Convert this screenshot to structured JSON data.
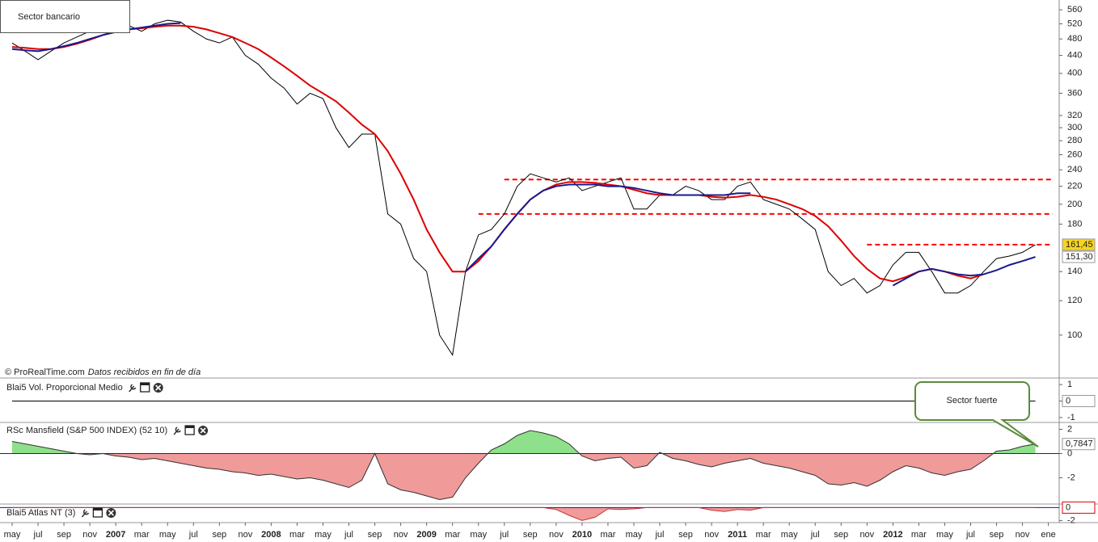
{
  "chart_data": [
    {
      "type": "line",
      "title": "Sector bancario",
      "source_note": "© ProRealTime.com",
      "source_note2": "Datos recibidos en fin de día",
      "categories": [
        "may",
        null,
        "jul",
        null,
        "sep",
        null,
        "nov",
        null,
        "2007",
        null,
        "mar",
        null,
        "may",
        null,
        "jul",
        null,
        "sep",
        null,
        "nov",
        null,
        "2008",
        null,
        "mar",
        null,
        "may",
        null,
        "jul",
        null,
        "sep",
        null,
        "nov",
        null,
        "2009",
        null,
        "mar",
        null,
        "may",
        null,
        "jul",
        null,
        "sep",
        null,
        "nov",
        null,
        "2010",
        null,
        "mar",
        null,
        "may",
        null,
        "jul",
        null,
        "sep",
        null,
        "nov",
        null,
        "2011",
        null,
        "mar",
        null,
        "may",
        null,
        "jul",
        null,
        "sep",
        null,
        "nov",
        null,
        "2012",
        null,
        "mar",
        null,
        "may",
        null,
        "jul",
        null,
        "sep",
        null,
        "nov",
        null,
        "ene"
      ],
      "log_scale": true,
      "ylim": [
        80,
        580
      ],
      "yticks": [
        560,
        520,
        480,
        440,
        400,
        360,
        320,
        300,
        280,
        260,
        240,
        220,
        200,
        180,
        140,
        120,
        100
      ],
      "series": [
        {
          "color": "#000000",
          "values": [
            470,
            450,
            430,
            450,
            470,
            485,
            500,
            510,
            520,
            515,
            500,
            520,
            530,
            525,
            500,
            480,
            470,
            485,
            440,
            420,
            390,
            370,
            340,
            360,
            350,
            300,
            270,
            290,
            290,
            190,
            180,
            150,
            140,
            100,
            90,
            140,
            170,
            175,
            190,
            220,
            235,
            230,
            225,
            230,
            215,
            220,
            225,
            230,
            195,
            195,
            210,
            210,
            220,
            215,
            205,
            205,
            220,
            225,
            205,
            200,
            195,
            185,
            175,
            140,
            130,
            135,
            125,
            130,
            145,
            155,
            155,
            140,
            125,
            125,
            130,
            140,
            150,
            152,
            155,
            161.45,
            null
          ],
          "last_label": "161,45",
          "label_fill": "#f7d51c"
        },
        {
          "color": "#dd0000",
          "values": [
            460,
            458,
            455,
            455,
            460,
            468,
            478,
            490,
            500,
            505,
            508,
            512,
            515,
            515,
            512,
            505,
            495,
            485,
            470,
            455,
            435,
            415,
            395,
            375,
            360,
            345,
            325,
            305,
            290,
            265,
            235,
            205,
            175,
            155,
            140,
            140,
            148,
            160,
            175,
            190,
            205,
            215,
            222,
            225,
            225,
            224,
            222,
            220,
            216,
            212,
            210,
            210,
            210,
            210,
            208,
            207,
            208,
            210,
            208,
            205,
            200,
            195,
            188,
            178,
            165,
            152,
            142,
            135,
            133,
            136,
            140,
            142,
            140,
            137,
            135,
            138,
            null,
            null,
            null,
            null,
            null
          ]
        },
        {
          "color": "#1a1a8c",
          "values": [
            455,
            452,
            450,
            455,
            462,
            470,
            480,
            490,
            498,
            505,
            510,
            515,
            520,
            522,
            null,
            null,
            null,
            null,
            null,
            null,
            null,
            null,
            null,
            null,
            null,
            null,
            null,
            null,
            null,
            null,
            null,
            null,
            null,
            null,
            null,
            140,
            150,
            160,
            175,
            190,
            205,
            215,
            220,
            222,
            222,
            222,
            220,
            220,
            218,
            215,
            212,
            210,
            210,
            210,
            210,
            210,
            212,
            212,
            null,
            null,
            null,
            null,
            null,
            null,
            null,
            null,
            null,
            null,
            130,
            135,
            140,
            142,
            140,
            138,
            137,
            138,
            141,
            145,
            148,
            151.3,
            null
          ],
          "last_label": "151,30",
          "label_fill": "#ffffff"
        }
      ],
      "hline_color": "#ff0000",
      "hlines": [
        {
          "value": 228,
          "from": 38
        },
        {
          "value": 190,
          "from": 36
        },
        {
          "value": 161.45,
          "from": 66
        }
      ]
    },
    {
      "type": "line",
      "title": "Blai5 Vol. Proporcional Medio",
      "ylim": [
        -1.25,
        1.25
      ],
      "yticks": [
        1,
        0,
        -1
      ],
      "series": [
        {
          "color": "#000000",
          "values": [
            0,
            0,
            0,
            0,
            0,
            0,
            0,
            0,
            0,
            0,
            0,
            0,
            0,
            0,
            0,
            0,
            0,
            0,
            0,
            0,
            0,
            0,
            0,
            0,
            0,
            0,
            0,
            0,
            0,
            0,
            0,
            0,
            0,
            0,
            0,
            0,
            0,
            0,
            0,
            0,
            0,
            0,
            0,
            0,
            0,
            0,
            0,
            0,
            0,
            0,
            0,
            0,
            0,
            0,
            0,
            0,
            0,
            0,
            0,
            0,
            0,
            0,
            0,
            0,
            0,
            0,
            0,
            0,
            0,
            0,
            0,
            0,
            0,
            0,
            0,
            0,
            0,
            0,
            0,
            0,
            null
          ],
          "last_label": "0",
          "label_fill": "#ffffff"
        }
      ]
    },
    {
      "type": "area",
      "title": "RSc Mansfield (S&P 500 INDEX) (52 10)",
      "ylim": [
        -4.1,
        2.5
      ],
      "yticks": [
        2,
        0,
        -2
      ],
      "annotation": "Sector fuerte",
      "series": [
        {
          "color": "#333333",
          "pos_color": "#8fe08a",
          "neg_color": "#f09a9a",
          "values": [
            1,
            0.8,
            0.6,
            0.4,
            0.2,
            0,
            -0.1,
            0,
            -0.2,
            -0.3,
            -0.5,
            -0.4,
            -0.6,
            -0.8,
            -1,
            -1.2,
            -1.3,
            -1.5,
            -1.6,
            -1.8,
            -1.7,
            -1.9,
            -2.1,
            -2,
            -2.2,
            -2.5,
            -2.8,
            -2.2,
            0,
            -2.5,
            -3,
            -3.2,
            -3.5,
            -3.8,
            -3.6,
            -2,
            -0.8,
            0.3,
            0.8,
            1.5,
            1.9,
            1.7,
            1.4,
            0.8,
            -0.2,
            -0.6,
            -0.4,
            -0.3,
            -1.2,
            -1,
            0.1,
            -0.4,
            -0.6,
            -0.9,
            -1.1,
            -0.8,
            -0.6,
            -0.4,
            -0.8,
            -1,
            -1.2,
            -1.5,
            -1.8,
            -2.5,
            -2.6,
            -2.4,
            -2.7,
            -2.2,
            -1.5,
            -1,
            -1.2,
            -1.6,
            -1.8,
            -1.5,
            -1.3,
            -0.6,
            0.2,
            0.3,
            0.6,
            0.7847,
            null
          ],
          "last_label": "0,7847",
          "label_fill": "#ffffff"
        }
      ]
    },
    {
      "type": "area",
      "title": "Blai5 Atlas NT (3)",
      "ylim": [
        -2.2,
        0.3
      ],
      "yticks": [
        -2
      ],
      "series": [
        {
          "color": "#cc3333",
          "pos_color": "#8fe08a",
          "neg_color": "#f09a9a",
          "values": [
            0,
            0,
            0,
            0,
            0,
            0,
            0,
            0,
            0,
            0,
            0,
            0,
            0,
            0,
            0,
            0,
            0,
            0,
            0,
            0,
            0,
            0,
            0,
            0,
            0,
            0,
            0,
            0,
            0,
            0,
            0,
            0,
            0,
            0,
            0,
            0,
            0,
            0,
            0,
            0,
            0,
            0,
            -0.3,
            -1.2,
            -2,
            -1.5,
            -0.2,
            -0.3,
            -0.2,
            0,
            0,
            0,
            0,
            0,
            -0.4,
            -0.6,
            -0.3,
            -0.4,
            0,
            0,
            0,
            0,
            0,
            0,
            0,
            0,
            0,
            0,
            0,
            0,
            0,
            0,
            0,
            0,
            0,
            0,
            0,
            0,
            0,
            0,
            null
          ],
          "last_label": "0",
          "label_fill": "#ffffff",
          "label_stroke": "#dd0000"
        }
      ]
    }
  ]
}
